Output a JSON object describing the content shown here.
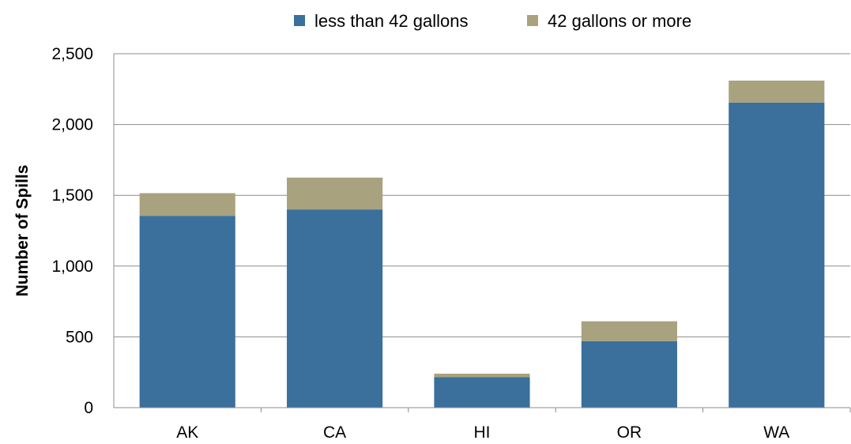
{
  "chart_data": {
    "type": "bar",
    "stacked": true,
    "title": "",
    "xlabel": "",
    "ylabel": "Number of Spills",
    "categories": [
      "AK",
      "CA",
      "HI",
      "OR",
      "WA"
    ],
    "series": [
      {
        "name": "less than 42 gallons",
        "color": "#3b6f9c",
        "values": [
          1355,
          1400,
          215,
          470,
          2155
        ]
      },
      {
        "name": "42 gallons or more",
        "color": "#a8a27e",
        "values": [
          160,
          225,
          25,
          140,
          155
        ]
      }
    ],
    "ylim": [
      0,
      2500
    ],
    "yticks": [
      0,
      500,
      1000,
      1500,
      2000,
      2500
    ],
    "ytick_labels": [
      "0",
      "500",
      "1,000",
      "1,500",
      "2,000",
      "2,500"
    ],
    "grid": "horizontal",
    "legend_position": "top"
  }
}
